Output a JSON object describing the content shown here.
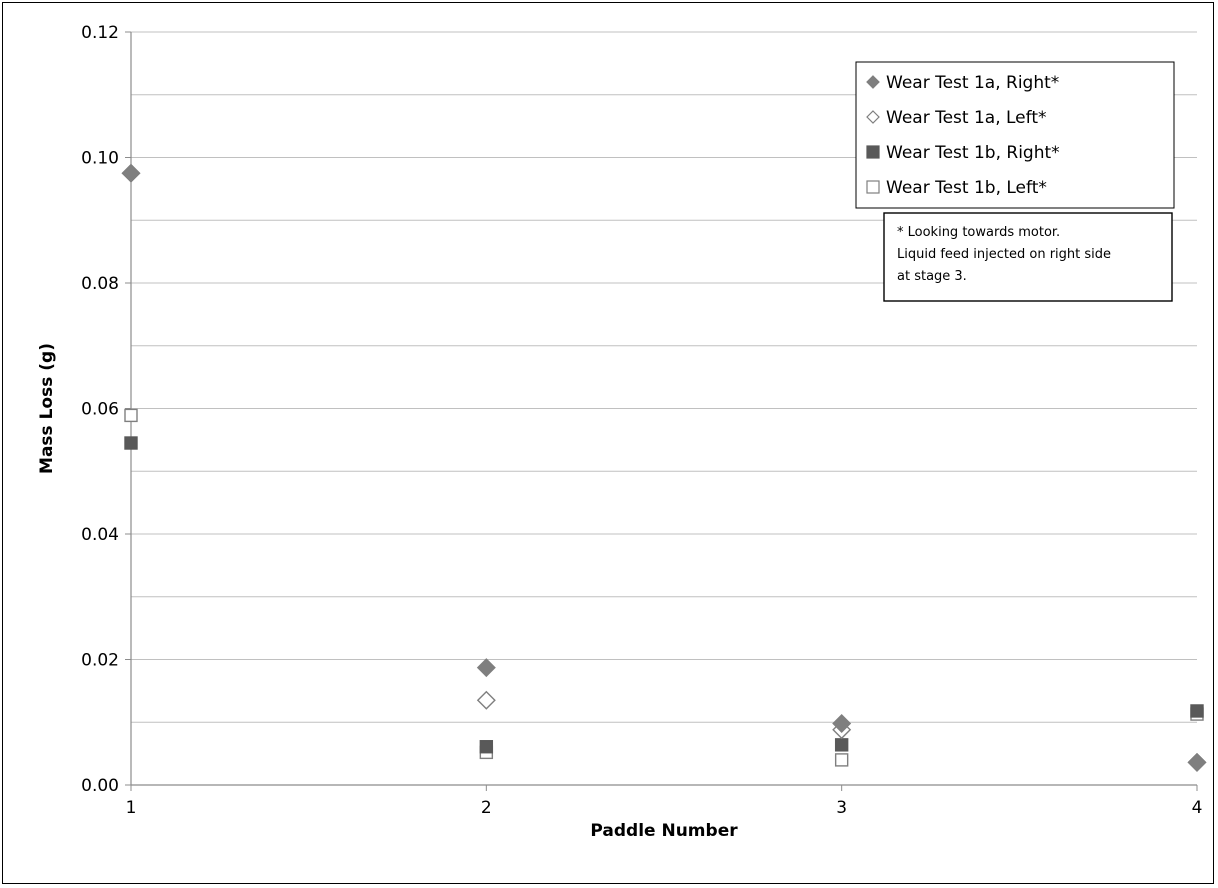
{
  "chart_data": {
    "type": "scatter",
    "title": "",
    "xlabel": "Paddle Number",
    "ylabel": "Mass Loss (g)",
    "xlim": [
      1,
      4
    ],
    "ylim": [
      0,
      0.12
    ],
    "x_ticks": [
      "1",
      "2",
      "3",
      "4"
    ],
    "y_ticks": [
      "0.00",
      "0.02",
      "0.04",
      "0.06",
      "0.08",
      "0.10",
      "0.12"
    ],
    "grid": "horizontal major and minor",
    "legend_position": "top-right",
    "series": [
      {
        "name": "Wear Test 1a, Right*",
        "marker": "filled-diamond",
        "color": "#7f7f7f",
        "points": [
          {
            "x": 1,
            "y": 0.0975
          },
          {
            "x": 2,
            "y": 0.0187
          },
          {
            "x": 3,
            "y": 0.0098
          },
          {
            "x": 4,
            "y": 0.0036
          }
        ]
      },
      {
        "name": "Wear Test 1a, Left*",
        "marker": "open-diamond",
        "color": "#7f7f7f",
        "points": [
          {
            "x": 1,
            "y": 0.0975
          },
          {
            "x": 2,
            "y": 0.0135
          },
          {
            "x": 3,
            "y": 0.0088
          },
          {
            "x": 4,
            "y": 0.0036
          }
        ]
      },
      {
        "name": "Wear Test 1b, Right*",
        "marker": "filled-square",
        "color": "#595959",
        "points": [
          {
            "x": 1,
            "y": 0.0545
          },
          {
            "x": 2,
            "y": 0.0061
          },
          {
            "x": 3,
            "y": 0.0064
          },
          {
            "x": 4,
            "y": 0.0118
          }
        ]
      },
      {
        "name": "Wear Test 1b, Left*",
        "marker": "open-square",
        "color": "#595959",
        "points": [
          {
            "x": 1,
            "y": 0.0589
          },
          {
            "x": 2,
            "y": 0.0052
          },
          {
            "x": 3,
            "y": 0.004
          },
          {
            "x": 4,
            "y": 0.0113
          }
        ]
      }
    ],
    "annotation": {
      "lines": [
        "* Looking towards motor.",
        "Liquid feed injected on right side",
        "at stage 3."
      ]
    }
  }
}
